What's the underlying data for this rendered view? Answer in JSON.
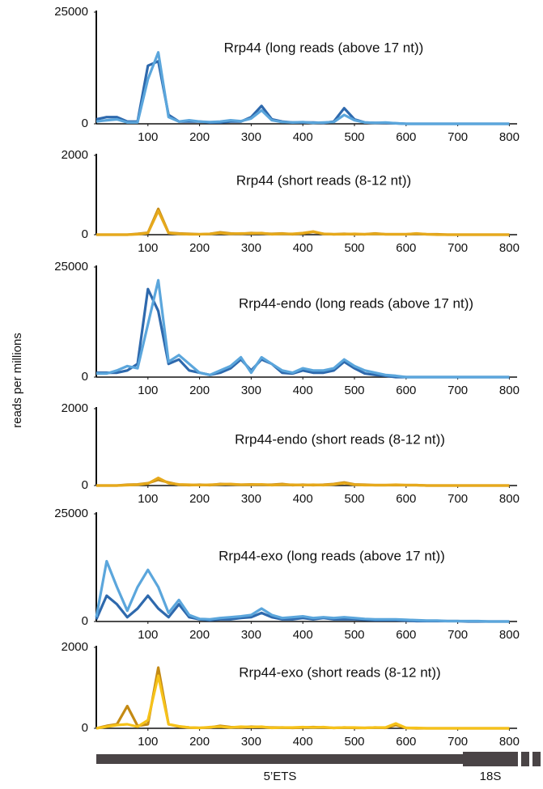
{
  "chart_data": [
    {
      "type": "line",
      "title": "Rrp44 (long reads (above 17 nt))",
      "x": [
        0,
        20,
        40,
        60,
        80,
        100,
        120,
        140,
        160,
        180,
        200,
        220,
        240,
        260,
        280,
        300,
        320,
        340,
        360,
        380,
        400,
        420,
        440,
        460,
        480,
        500,
        520,
        540,
        560,
        580,
        600,
        620,
        640,
        660,
        680,
        700,
        720,
        740,
        760,
        780,
        800
      ],
      "series": [
        {
          "color": "#2e69ad",
          "values": [
            1000,
            1500,
            1500,
            500,
            500,
            13000,
            14000,
            2000,
            500,
            500,
            500,
            300,
            300,
            500,
            500,
            1500,
            4000,
            1000,
            500,
            300,
            300,
            300,
            200,
            500,
            3500,
            1000,
            300,
            200,
            200,
            100,
            0,
            0,
            0,
            0,
            0,
            0,
            0,
            0,
            0,
            0,
            0
          ]
        },
        {
          "color": "#5ba6dc",
          "values": [
            500,
            800,
            1000,
            300,
            300,
            10000,
            16000,
            1500,
            500,
            800,
            500,
            400,
            500,
            800,
            600,
            1200,
            3000,
            800,
            400,
            300,
            400,
            200,
            300,
            400,
            2000,
            800,
            300,
            200,
            300,
            100,
            0,
            0,
            0,
            0,
            0,
            0,
            0,
            0,
            0,
            0,
            0
          ]
        }
      ],
      "xlim": [
        0,
        815
      ],
      "xticks": [
        100,
        200,
        300,
        400,
        500,
        600,
        700,
        800
      ],
      "ylim": [
        0,
        25000
      ],
      "yticks": [
        0,
        25000
      ]
    },
    {
      "type": "line",
      "title": "Rrp44 (short reads (8-12 nt))",
      "x": [
        0,
        20,
        40,
        60,
        80,
        100,
        120,
        140,
        160,
        180,
        200,
        220,
        240,
        260,
        280,
        300,
        320,
        340,
        360,
        380,
        400,
        420,
        440,
        460,
        480,
        500,
        520,
        540,
        560,
        580,
        600,
        620,
        640,
        660,
        680,
        700,
        720,
        740,
        760,
        780,
        800
      ],
      "series": [
        {
          "color": "#c48a14",
          "values": [
            0,
            0,
            0,
            0,
            20,
            50,
            650,
            50,
            30,
            20,
            10,
            20,
            60,
            30,
            20,
            40,
            30,
            20,
            30,
            10,
            30,
            70,
            20,
            10,
            20,
            10,
            10,
            30,
            10,
            10,
            10,
            20,
            10,
            10,
            0,
            0,
            0,
            0,
            0,
            0,
            0
          ]
        },
        {
          "color": "#e6a91c",
          "values": [
            0,
            0,
            0,
            0,
            10,
            40,
            600,
            40,
            20,
            10,
            10,
            20,
            40,
            20,
            30,
            30,
            40,
            10,
            20,
            20,
            40,
            80,
            20,
            10,
            10,
            20,
            10,
            20,
            10,
            10,
            10,
            30,
            10,
            0,
            0,
            0,
            0,
            0,
            0,
            0,
            0
          ]
        }
      ],
      "xlim": [
        0,
        815
      ],
      "xticks": [
        100,
        200,
        300,
        400,
        500,
        600,
        700,
        800
      ],
      "ylim": [
        0,
        2000
      ],
      "yticks": [
        0,
        2000
      ]
    },
    {
      "type": "line",
      "title": "Rrp44-endo (long reads (above 17 nt))",
      "x": [
        0,
        20,
        40,
        60,
        80,
        100,
        120,
        140,
        160,
        180,
        200,
        220,
        240,
        260,
        280,
        300,
        320,
        340,
        360,
        380,
        400,
        420,
        440,
        460,
        480,
        500,
        520,
        540,
        560,
        580,
        600,
        620,
        640,
        660,
        680,
        700,
        720,
        740,
        760,
        780,
        800
      ],
      "series": [
        {
          "color": "#2e69ad",
          "values": [
            1000,
            1000,
            1000,
            1500,
            3000,
            20000,
            15000,
            3000,
            4000,
            1500,
            1000,
            500,
            1000,
            2000,
            4000,
            1500,
            4000,
            3000,
            1000,
            800,
            1500,
            1000,
            1000,
            1500,
            3500,
            2000,
            800,
            500,
            300,
            0,
            0,
            0,
            0,
            0,
            0,
            0,
            0,
            0,
            0,
            0,
            0
          ]
        },
        {
          "color": "#5ba6dc",
          "values": [
            800,
            800,
            1500,
            2500,
            2000,
            12000,
            22000,
            3500,
            5000,
            3000,
            1000,
            500,
            1500,
            2500,
            4500,
            1000,
            4500,
            3000,
            1500,
            1000,
            2000,
            1500,
            1500,
            2000,
            4000,
            2500,
            1500,
            1000,
            500,
            300,
            0,
            0,
            0,
            0,
            0,
            0,
            0,
            0,
            0,
            0,
            0
          ]
        }
      ],
      "xlim": [
        0,
        815
      ],
      "xticks": [
        100,
        200,
        300,
        400,
        500,
        600,
        700,
        800
      ],
      "ylim": [
        0,
        25000
      ],
      "yticks": [
        0,
        25000
      ]
    },
    {
      "type": "line",
      "title": "Rrp44-endo (short reads (8-12 nt))",
      "x": [
        0,
        20,
        40,
        60,
        80,
        100,
        120,
        140,
        160,
        180,
        200,
        220,
        240,
        260,
        280,
        300,
        320,
        340,
        360,
        380,
        400,
        420,
        440,
        460,
        480,
        500,
        520,
        540,
        560,
        580,
        600,
        620,
        640,
        660,
        680,
        700,
        720,
        740,
        760,
        780,
        800
      ],
      "series": [
        {
          "color": "#c48a14",
          "values": [
            0,
            0,
            0,
            20,
            30,
            60,
            150,
            80,
            20,
            10,
            20,
            10,
            40,
            30,
            20,
            30,
            20,
            20,
            40,
            10,
            20,
            10,
            20,
            40,
            80,
            30,
            20,
            10,
            10,
            10,
            10,
            10,
            0,
            0,
            0,
            0,
            0,
            0,
            0,
            0,
            0
          ]
        },
        {
          "color": "#e6a91c",
          "values": [
            0,
            0,
            0,
            10,
            20,
            50,
            200,
            60,
            30,
            20,
            10,
            20,
            30,
            40,
            20,
            20,
            30,
            10,
            20,
            20,
            10,
            20,
            10,
            30,
            60,
            20,
            10,
            10,
            10,
            20,
            10,
            10,
            0,
            0,
            0,
            0,
            0,
            0,
            0,
            0,
            0
          ]
        }
      ],
      "xlim": [
        0,
        815
      ],
      "xticks": [
        100,
        200,
        300,
        400,
        500,
        600,
        700,
        800
      ],
      "ylim": [
        0,
        2000
      ],
      "yticks": [
        0,
        2000
      ]
    },
    {
      "type": "line",
      "title": "Rrp44-exo (long reads (above 17 nt))",
      "x": [
        0,
        20,
        40,
        60,
        80,
        100,
        120,
        140,
        160,
        180,
        200,
        220,
        240,
        260,
        280,
        300,
        320,
        340,
        360,
        380,
        400,
        420,
        440,
        460,
        480,
        500,
        520,
        540,
        560,
        580,
        600,
        620,
        640,
        660,
        680,
        700,
        720,
        740,
        760,
        780,
        800
      ],
      "series": [
        {
          "color": "#2e69ad",
          "values": [
            500,
            6000,
            4000,
            1000,
            3000,
            6000,
            3000,
            1000,
            4000,
            1000,
            500,
            300,
            500,
            500,
            800,
            1000,
            2000,
            1000,
            500,
            500,
            800,
            500,
            800,
            500,
            500,
            500,
            400,
            300,
            300,
            300,
            200,
            100,
            100,
            100,
            100,
            100,
            0,
            0,
            0,
            0,
            0
          ]
        },
        {
          "color": "#5ba6dc",
          "values": [
            1000,
            14000,
            8000,
            2500,
            8000,
            12000,
            8000,
            2000,
            5000,
            1500,
            600,
            500,
            800,
            1000,
            1200,
            1500,
            3000,
            1500,
            800,
            1000,
            1200,
            800,
            1000,
            800,
            1000,
            800,
            600,
            500,
            500,
            500,
            400,
            300,
            200,
            200,
            100,
            100,
            100,
            100,
            0,
            0,
            0
          ]
        }
      ],
      "xlim": [
        0,
        815
      ],
      "xticks": [
        100,
        200,
        300,
        400,
        500,
        600,
        700,
        800
      ],
      "ylim": [
        0,
        25000
      ],
      "yticks": [
        0,
        25000
      ]
    },
    {
      "type": "line",
      "title": "Rrp44-exo (short reads (8-12 nt))",
      "x": [
        0,
        20,
        40,
        60,
        80,
        100,
        120,
        140,
        160,
        180,
        200,
        220,
        240,
        260,
        280,
        300,
        320,
        340,
        360,
        380,
        400,
        420,
        440,
        460,
        480,
        500,
        520,
        540,
        560,
        580,
        600,
        620,
        640,
        660,
        680,
        700,
        720,
        740,
        760,
        780,
        800
      ],
      "series": [
        {
          "color": "#c48a14",
          "values": [
            0,
            60,
            100,
            550,
            60,
            100,
            1500,
            100,
            40,
            20,
            10,
            20,
            60,
            30,
            20,
            40,
            30,
            20,
            20,
            10,
            20,
            30,
            20,
            10,
            20,
            10,
            10,
            20,
            10,
            80,
            10,
            0,
            0,
            0,
            0,
            0,
            0,
            0,
            0,
            0,
            0
          ]
        },
        {
          "color": "#f6c21a",
          "values": [
            0,
            40,
            80,
            100,
            40,
            200,
            1300,
            100,
            50,
            20,
            10,
            30,
            40,
            20,
            40,
            30,
            40,
            10,
            20,
            20,
            30,
            20,
            30,
            10,
            20,
            20,
            10,
            20,
            20,
            120,
            10,
            10,
            0,
            0,
            0,
            0,
            0,
            0,
            0,
            0,
            0
          ]
        }
      ],
      "xlim": [
        0,
        815
      ],
      "xticks": [
        100,
        200,
        300,
        400,
        500,
        600,
        700,
        800
      ],
      "ylim": [
        0,
        2000
      ],
      "yticks": [
        0,
        2000
      ]
    }
  ],
  "y_label": "reads per millions",
  "gene_map": {
    "labels": [
      "5’ETS",
      "18S"
    ]
  }
}
